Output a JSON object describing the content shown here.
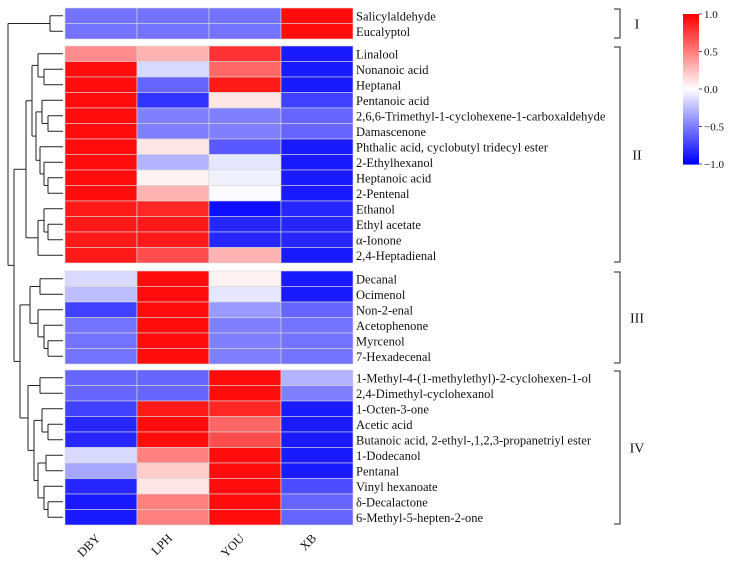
{
  "chart_data": {
    "type": "heatmap",
    "title": "",
    "columns": [
      "DBY",
      "LPH",
      "YOU",
      "XB"
    ],
    "color_scale": {
      "min": -1.0,
      "max": 1.0,
      "low_color": "#0000ff",
      "mid_color": "#ffffff",
      "high_color": "#ff0000",
      "ticks": [
        {
          "value": 1.0,
          "label": "1.0"
        },
        {
          "value": 0.5,
          "label": "0.5"
        },
        {
          "value": 0.0,
          "label": "0.0"
        },
        {
          "value": -0.5,
          "label": "−0.5"
        },
        {
          "value": -1.0,
          "label": "−1.0"
        }
      ]
    },
    "groups": [
      {
        "label": "I",
        "start": 0,
        "end": 1
      },
      {
        "label": "II",
        "start": 2,
        "end": 15
      },
      {
        "label": "III",
        "start": 16,
        "end": 21
      },
      {
        "label": "IV",
        "start": 22,
        "end": 31
      }
    ],
    "rows": [
      {
        "label": "Salicylaldehyde",
        "values": [
          -0.55,
          -0.55,
          -0.55,
          0.95
        ]
      },
      {
        "label": "Eucalyptol",
        "values": [
          -0.55,
          -0.55,
          -0.55,
          0.95
        ]
      },
      {
        "label": "Linalool",
        "values": [
          0.45,
          0.3,
          0.8,
          -0.9
        ]
      },
      {
        "label": "Nonanoic acid",
        "values": [
          0.95,
          -0.15,
          0.6,
          -0.9
        ]
      },
      {
        "label": "Heptanal",
        "values": [
          0.95,
          -0.6,
          0.9,
          -0.9
        ]
      },
      {
        "label": "Pentanoic acid",
        "values": [
          0.95,
          -0.8,
          0.1,
          -0.75
        ]
      },
      {
        "label": "2,6,6-Trimethyl-1-cyclohexene-1-carboxaldehyde",
        "values": [
          0.95,
          -0.5,
          -0.5,
          -0.6
        ]
      },
      {
        "label": "Damascenone",
        "values": [
          0.95,
          -0.5,
          -0.5,
          -0.6
        ]
      },
      {
        "label": "Phthalic acid, cyclobutyl tridecyl ester",
        "values": [
          0.95,
          0.1,
          -0.65,
          -0.9
        ]
      },
      {
        "label": "2-Ethylhexanol",
        "values": [
          0.95,
          -0.3,
          -0.1,
          -0.9
        ]
      },
      {
        "label": "Heptanoic acid",
        "values": [
          0.95,
          0.05,
          -0.05,
          -0.9
        ]
      },
      {
        "label": "2-Pentenal",
        "values": [
          0.95,
          0.3,
          -0.02,
          -0.9
        ]
      },
      {
        "label": "Ethanol",
        "values": [
          0.9,
          0.85,
          -0.95,
          -0.85
        ]
      },
      {
        "label": "Ethyl acetate",
        "values": [
          0.9,
          0.9,
          -0.85,
          -0.85
        ]
      },
      {
        "label": "α-Ionone",
        "values": [
          0.9,
          0.9,
          -0.85,
          -0.85
        ]
      },
      {
        "label": "2,4-Heptadienal",
        "values": [
          0.9,
          0.7,
          0.3,
          -0.9
        ]
      },
      {
        "label": "Decanal",
        "values": [
          -0.15,
          0.95,
          0.05,
          -0.9
        ]
      },
      {
        "label": "Ocimenol",
        "values": [
          -0.25,
          0.95,
          -0.1,
          -0.9
        ]
      },
      {
        "label": "Non-2-enal",
        "values": [
          -0.75,
          0.95,
          -0.4,
          -0.6
        ]
      },
      {
        "label": "Acetophenone",
        "values": [
          -0.55,
          0.95,
          -0.5,
          -0.55
        ]
      },
      {
        "label": "Myrcenol",
        "values": [
          -0.55,
          0.95,
          -0.5,
          -0.55
        ]
      },
      {
        "label": "7-Hexadecenal",
        "values": [
          -0.55,
          0.95,
          -0.5,
          -0.55
        ]
      },
      {
        "label": "1-Methyl-4-(1-methylethyl)-2-cyclohexen-1-ol",
        "values": [
          -0.6,
          -0.6,
          0.95,
          -0.3
        ]
      },
      {
        "label": "2,4-Dimethyl-cyclohexanol",
        "values": [
          -0.6,
          -0.6,
          0.95,
          -0.5
        ]
      },
      {
        "label": "1-Octen-3-one",
        "values": [
          -0.75,
          0.9,
          0.85,
          -0.9
        ]
      },
      {
        "label": "Acetic acid",
        "values": [
          -0.85,
          0.95,
          0.6,
          -0.9
        ]
      },
      {
        "label": "Butanoic acid, 2-ethyl-,1,2,3-propanetriyl ester",
        "values": [
          -0.85,
          0.95,
          0.7,
          -0.9
        ]
      },
      {
        "label": "1-Dodecanol",
        "values": [
          -0.15,
          0.5,
          0.95,
          -0.9
        ]
      },
      {
        "label": "Pentanal",
        "values": [
          -0.35,
          0.2,
          0.95,
          -0.9
        ]
      },
      {
        "label": "Vinyl hexanoate",
        "values": [
          -0.85,
          0.1,
          0.95,
          -0.7
        ]
      },
      {
        "label": "δ-Decalactone",
        "values": [
          -0.9,
          0.5,
          0.95,
          -0.6
        ]
      },
      {
        "label": "6-Methyl-5-hepten-2-one",
        "values": [
          -0.9,
          0.5,
          0.95,
          -0.6
        ]
      }
    ]
  }
}
